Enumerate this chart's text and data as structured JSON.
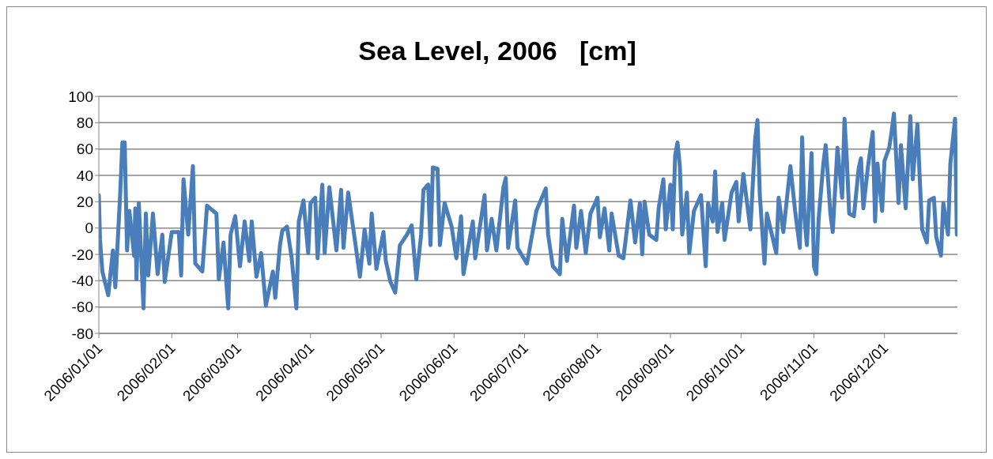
{
  "chart_data": {
    "type": "line",
    "title": "Sea Level, 2006   [cm]",
    "x": [
      "2006-01-01T00:00",
      "2006-01-01T12:00",
      "2006-01-02T12:00",
      "2006-01-05",
      "2006-01-07",
      "2006-01-08",
      "2006-01-10",
      "2006-01-11",
      "2006-01-12",
      "2006-01-13",
      "2006-01-14",
      "2006-01-16",
      "2006-01-16T12:00",
      "2006-01-17",
      "2006-01-18",
      "2006-01-20",
      "2006-01-21",
      "2006-01-22",
      "2006-01-24",
      "2006-01-26",
      "2006-01-28",
      "2006-01-29",
      "2006-02-01",
      "2006-02-04",
      "2006-02-05",
      "2006-02-06",
      "2006-02-08",
      "2006-02-10",
      "2006-02-11",
      "2006-02-14",
      "2006-02-16",
      "2006-02-20",
      "2006-02-21",
      "2006-02-23",
      "2006-02-25",
      "2006-02-26",
      "2006-02-28",
      "2006-03-02",
      "2006-03-04",
      "2006-03-06",
      "2006-03-07",
      "2006-03-09",
      "2006-03-11",
      "2006-03-13",
      "2006-03-16",
      "2006-03-17",
      "2006-03-19",
      "2006-03-20",
      "2006-03-22",
      "2006-03-24",
      "2006-03-26",
      "2006-03-27",
      "2006-03-29",
      "2006-03-31",
      "2006-04-01",
      "2006-04-03",
      "2006-04-04",
      "2006-04-06",
      "2006-04-07",
      "2006-04-09",
      "2006-04-12",
      "2006-04-14",
      "2006-04-15",
      "2006-04-17",
      "2006-04-20",
      "2006-04-22",
      "2006-04-24",
      "2006-04-26",
      "2006-04-27",
      "2006-04-29",
      "2006-05-02",
      "2006-05-03",
      "2006-05-05",
      "2006-05-07",
      "2006-05-09",
      "2006-05-12",
      "2006-05-14",
      "2006-05-16",
      "2006-05-18",
      "2006-05-19",
      "2006-05-21",
      "2006-05-22",
      "2006-05-23",
      "2006-05-25",
      "2006-05-26",
      "2006-05-28",
      "2006-05-31",
      "2006-06-02",
      "2006-06-04",
      "2006-06-05",
      "2006-06-09",
      "2006-06-10",
      "2006-06-14",
      "2006-06-15",
      "2006-06-17",
      "2006-06-19",
      "2006-06-22",
      "2006-06-23",
      "2006-06-24",
      "2006-06-27",
      "2006-06-28",
      "2006-06-30",
      "2006-07-02",
      "2006-07-04",
      "2006-07-06",
      "2006-07-10",
      "2006-07-11",
      "2006-07-13",
      "2006-07-16",
      "2006-07-17",
      "2006-07-19",
      "2006-07-22",
      "2006-07-23",
      "2006-07-25",
      "2006-07-27",
      "2006-07-29",
      "2006-08-01",
      "2006-08-02",
      "2006-08-04",
      "2006-08-06",
      "2006-08-07",
      "2006-08-10",
      "2006-08-12",
      "2006-08-15",
      "2006-08-17",
      "2006-08-19",
      "2006-08-20",
      "2006-08-21",
      "2006-08-23",
      "2006-08-26",
      "2006-08-27",
      "2006-08-29",
      "2006-08-30",
      "2006-09-01",
      "2006-09-02",
      "2006-09-03",
      "2006-09-04",
      "2006-09-05",
      "2006-09-06",
      "2006-09-08",
      "2006-09-09",
      "2006-09-11",
      "2006-09-14",
      "2006-09-16",
      "2006-09-17",
      "2006-09-19",
      "2006-09-20",
      "2006-09-21",
      "2006-09-23",
      "2006-09-24",
      "2006-09-27",
      "2006-09-29",
      "2006-09-30",
      "2006-10-02",
      "2006-10-05",
      "2006-10-07",
      "2006-10-08",
      "2006-10-09",
      "2006-10-11",
      "2006-10-12",
      "2006-10-16",
      "2006-10-17",
      "2006-10-19",
      "2006-10-22",
      "2006-10-24",
      "2006-10-26",
      "2006-10-27",
      "2006-10-28",
      "2006-10-29",
      "2006-10-31",
      "2006-11-01",
      "2006-11-02",
      "2006-11-03",
      "2006-11-05",
      "2006-11-06",
      "2006-11-08",
      "2006-11-09",
      "2006-11-11",
      "2006-11-13",
      "2006-11-14",
      "2006-11-15",
      "2006-11-16",
      "2006-11-18",
      "2006-11-20",
      "2006-11-21",
      "2006-11-22",
      "2006-11-24",
      "2006-11-26",
      "2006-11-27",
      "2006-11-28",
      "2006-11-30",
      "2006-12-01",
      "2006-12-03",
      "2006-12-04",
      "2006-12-05",
      "2006-12-07",
      "2006-12-08",
      "2006-12-10",
      "2006-12-12",
      "2006-12-13",
      "2006-12-15",
      "2006-12-16",
      "2006-12-17",
      "2006-12-19",
      "2006-12-20",
      "2006-12-22",
      "2006-12-23",
      "2006-12-25",
      "2006-12-26",
      "2006-12-28",
      "2006-12-29",
      "2006-12-31",
      "2006-12-31T18:00"
    ],
    "series": [
      {
        "color": "#4a7ebb",
        "values": [
          25,
          -9,
          -33,
          -51,
          -17,
          -45,
          23,
          65,
          65,
          -17,
          13,
          -21,
          15,
          -39,
          19,
          -61,
          11,
          -36,
          11,
          -35,
          -5,
          -41,
          -3,
          -3,
          -36,
          37,
          -5,
          47,
          -27,
          -33,
          17,
          11,
          -39,
          -11,
          -61,
          -5,
          9,
          -29,
          5,
          -25,
          5,
          -37,
          -19,
          -59,
          -33,
          -53,
          -13,
          -2,
          1,
          -23,
          -61,
          5,
          21,
          -19,
          19,
          23,
          -23,
          33,
          -19,
          31,
          -17,
          29,
          -15,
          27,
          -11,
          -37,
          -1,
          -27,
          11,
          -31,
          -3,
          -25,
          -41,
          -49,
          -13,
          -5,
          2,
          -39,
          -5,
          29,
          33,
          -13,
          46,
          45,
          -13,
          19,
          1,
          -23,
          9,
          -35,
          5,
          -23,
          25,
          -17,
          7,
          -17,
          31,
          38,
          -15,
          21,
          -15,
          -21,
          -27,
          -7,
          13,
          30,
          -5,
          -29,
          -35,
          7,
          -25,
          17,
          -15,
          13,
          -19,
          11,
          23,
          -7,
          15,
          -17,
          11,
          -21,
          -23,
          21,
          -11,
          19,
          -20,
          20,
          -5,
          -9,
          15,
          37,
          -1,
          33,
          -1,
          55,
          65,
          47,
          -5,
          27,
          -19,
          13,
          25,
          -29,
          19,
          5,
          43,
          -3,
          19,
          -9,
          27,
          35,
          5,
          41,
          -1,
          67,
          82,
          25,
          -27,
          11,
          -19,
          23,
          -3,
          47,
          13,
          -15,
          69,
          7,
          -13,
          57,
          -29,
          -35,
          7,
          49,
          63,
          11,
          -3,
          61,
          23,
          83,
          51,
          11,
          9,
          45,
          53,
          15,
          47,
          73,
          5,
          49,
          13,
          51,
          61,
          73,
          87,
          19,
          63,
          15,
          85,
          37,
          79,
          37,
          -1,
          -11,
          21,
          23,
          -7,
          -21,
          19,
          -5,
          49,
          83,
          -5
        ]
      }
    ],
    "xlim": [
      "2006-01-01",
      "2007-01-01"
    ],
    "xticks": [
      {
        "value": "2006-01-01",
        "label": "2006/01/01"
      },
      {
        "value": "2006-02-01",
        "label": "2006/02/01"
      },
      {
        "value": "2006-03-01",
        "label": "2006/03/01"
      },
      {
        "value": "2006-04-01",
        "label": "2006/04/01"
      },
      {
        "value": "2006-05-01",
        "label": "2006/05/01"
      },
      {
        "value": "2006-06-01",
        "label": "2006/06/01"
      },
      {
        "value": "2006-07-01",
        "label": "2006/07/01"
      },
      {
        "value": "2006-08-01",
        "label": "2006/08/01"
      },
      {
        "value": "2006-09-01",
        "label": "2006/09/01"
      },
      {
        "value": "2006-10-01",
        "label": "2006/10/01"
      },
      {
        "value": "2006-11-01",
        "label": "2006/11/01"
      },
      {
        "value": "2006-12-01",
        "label": "2006/12/01"
      }
    ],
    "ylim": [
      -80,
      100
    ],
    "yticks": [
      -80,
      -60,
      -40,
      -20,
      0,
      20,
      40,
      60,
      80,
      100
    ],
    "grid": "y",
    "legend": false,
    "marker": "none",
    "line_style": "solid"
  }
}
